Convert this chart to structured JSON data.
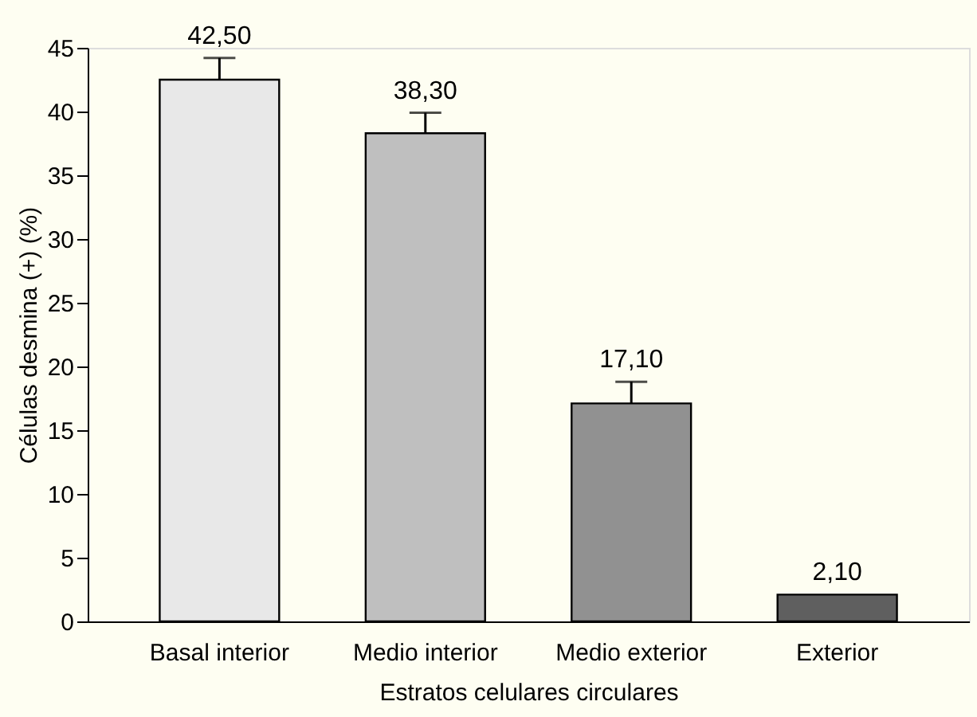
{
  "chart_data": {
    "type": "bar",
    "xlabel": "Estratos celulares circulares",
    "ylabel": "Células desmina (+) (%)",
    "categories": [
      "Basal interior",
      "Medio interior",
      "Medio exterior",
      "Exterior"
    ],
    "values": [
      42.5,
      38.3,
      17.1,
      2.1
    ],
    "colors": [
      "#e8e8e8",
      "#bfbfbf",
      "#919191",
      "#5f5f5f"
    ],
    "errors": [
      [
        42.5,
        44.2
      ],
      [
        38.3,
        39.9
      ],
      [
        17.1,
        18.8
      ],
      null
    ],
    "value_labels": [
      "42,50",
      "38,30",
      "17,10",
      "2,10"
    ],
    "ylim": [
      0,
      45
    ],
    "yticks": [
      0,
      5,
      10,
      15,
      20,
      25,
      30,
      35,
      40,
      45
    ],
    "grid": false,
    "legend": false
  }
}
